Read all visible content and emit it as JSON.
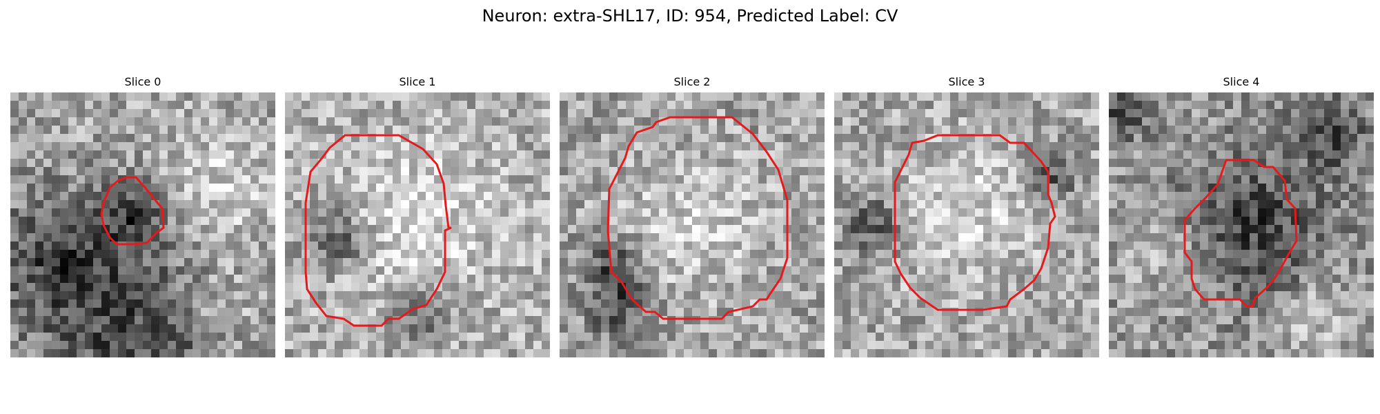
{
  "figure": {
    "title": "Neuron: extra-SHL17, ID: 954, Predicted Label: CV",
    "overlay_color": "#e41a1c"
  },
  "slices": [
    {
      "title": "Slice 0",
      "pattern": {
        "bias": 10,
        "dark_spots": [
          [
            0.18,
            0.62,
            0.18
          ],
          [
            0.48,
            0.94,
            0.26
          ],
          [
            0.48,
            0.45,
            0.09
          ]
        ],
        "bright_spots": [
          [
            0.78,
            0.38,
            0.16
          ],
          [
            0.8,
            0.83,
            0.1
          ]
        ]
      },
      "contour_color": "#e41a1c"
    },
    {
      "title": "Slice 1",
      "pattern": {
        "bias": 18,
        "dark_spots": [
          [
            0.2,
            0.55,
            0.08
          ],
          [
            0.5,
            0.83,
            0.07
          ]
        ],
        "bright_spots": [
          [
            0.5,
            0.48,
            0.22
          ]
        ]
      },
      "contour_color": "#e41a1c"
    },
    {
      "title": "Slice 2",
      "pattern": {
        "bias": 8,
        "dark_spots": [
          [
            0.2,
            0.65,
            0.08
          ],
          [
            0.22,
            0.82,
            0.08
          ]
        ],
        "bright_spots": [
          [
            0.5,
            0.5,
            0.2
          ]
        ]
      },
      "contour_color": "#e41a1c"
    },
    {
      "title": "Slice 3",
      "pattern": {
        "bias": 12,
        "dark_spots": [
          [
            0.15,
            0.5,
            0.08
          ],
          [
            0.82,
            0.3,
            0.07
          ]
        ],
        "bright_spots": [
          [
            0.5,
            0.45,
            0.2
          ]
        ]
      },
      "contour_color": "#e41a1c"
    },
    {
      "title": "Slice 4",
      "pattern": {
        "bias": -4,
        "dark_spots": [
          [
            0.55,
            0.5,
            0.18
          ],
          [
            0.05,
            0.05,
            0.08
          ],
          [
            0.85,
            0.15,
            0.09
          ]
        ],
        "bright_spots": [
          [
            0.2,
            0.6,
            0.1
          ],
          [
            0.8,
            0.85,
            0.1
          ]
        ]
      },
      "contour_color": "#e41a1c"
    }
  ]
}
